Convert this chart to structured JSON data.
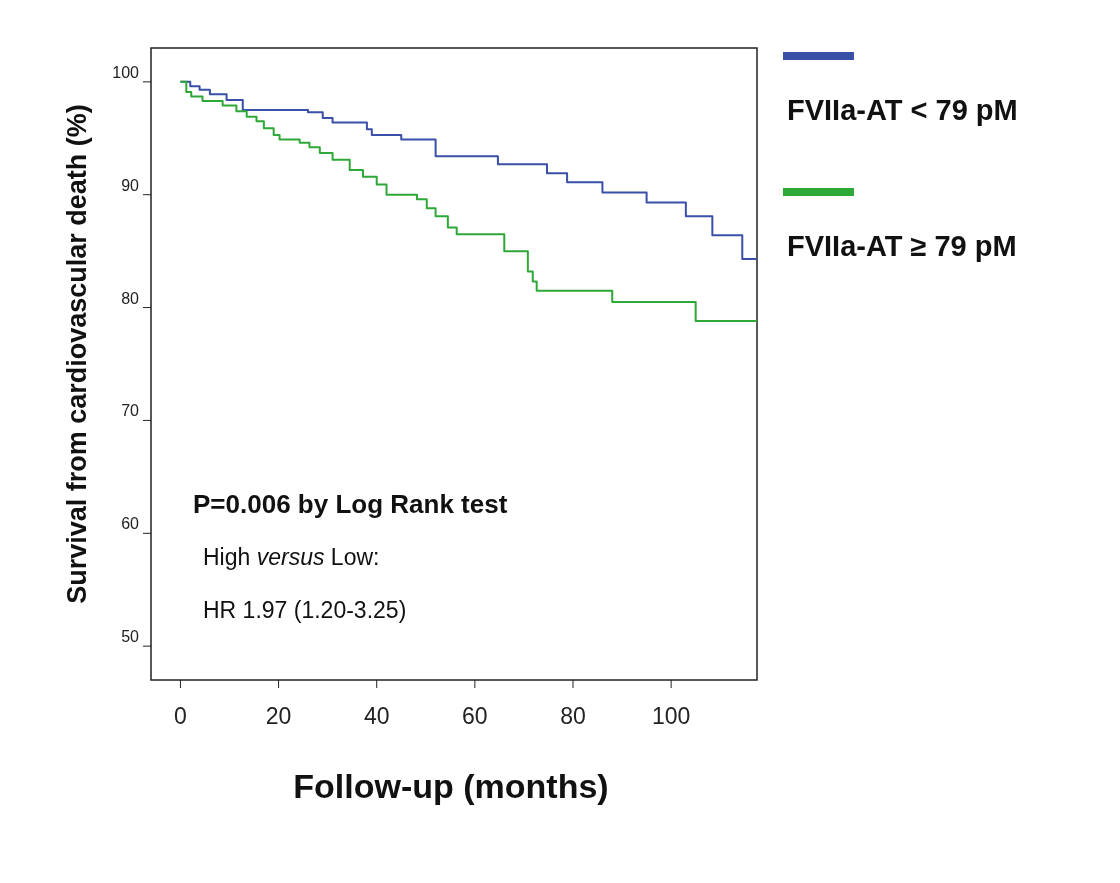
{
  "chart_data": {
    "type": "step",
    "xlabel": "Follow-up (months)",
    "ylabel": "Survival from cardiovascular death (%)",
    "xlim": [
      -6,
      117.5
    ],
    "ylim": [
      47,
      103
    ],
    "xticks": [
      0,
      20,
      40,
      60,
      80,
      100
    ],
    "yticks": [
      50,
      60,
      70,
      80,
      90,
      100
    ],
    "legend": "right",
    "grid": false,
    "series": [
      {
        "name": "FVIIa-AT < 79 pM",
        "color": "#3a4fa8",
        "x": [
          0,
          2,
          3.9,
          6,
          9.4,
          12.7,
          26,
          29,
          31,
          38,
          39,
          45,
          52,
          64.7,
          74.7,
          78.8,
          86,
          95,
          103,
          108.4,
          114.5,
          117.5
        ],
        "values": [
          100,
          99.6,
          99.3,
          98.9,
          98.4,
          97.5,
          97.3,
          96.8,
          96.4,
          95.8,
          95.3,
          94.9,
          93.4,
          92.7,
          91.9,
          91.1,
          90.2,
          89.3,
          88.1,
          86.4,
          84.3,
          84.3
        ]
      },
      {
        "name": "FVIIa-AT ≥ 79 pM",
        "color": "#2ea836",
        "x": [
          0,
          1.2,
          2.2,
          4.5,
          8.6,
          11.4,
          13.5,
          15.5,
          17,
          19,
          20.2,
          24.3,
          26.3,
          28.4,
          31,
          34.5,
          37.2,
          40,
          42,
          48.2,
          50.2,
          52,
          54.5,
          56.3,
          66,
          70.8,
          71.8,
          72.6,
          88,
          105,
          117.5
        ],
        "values": [
          100,
          99.1,
          98.7,
          98.3,
          97.9,
          97.4,
          96.9,
          96.5,
          95.9,
          95.3,
          94.9,
          94.6,
          94.2,
          93.7,
          93.1,
          92.2,
          91.6,
          90.9,
          90,
          89.6,
          88.8,
          88.1,
          87.1,
          86.5,
          85,
          83.2,
          82.3,
          81.5,
          80.5,
          78.8,
          78.8
        ]
      }
    ],
    "annotations": [
      "P=0.006 by Log Rank test",
      "High versus Low:",
      "HR 1.97 (1.20-3.25)"
    ]
  }
}
